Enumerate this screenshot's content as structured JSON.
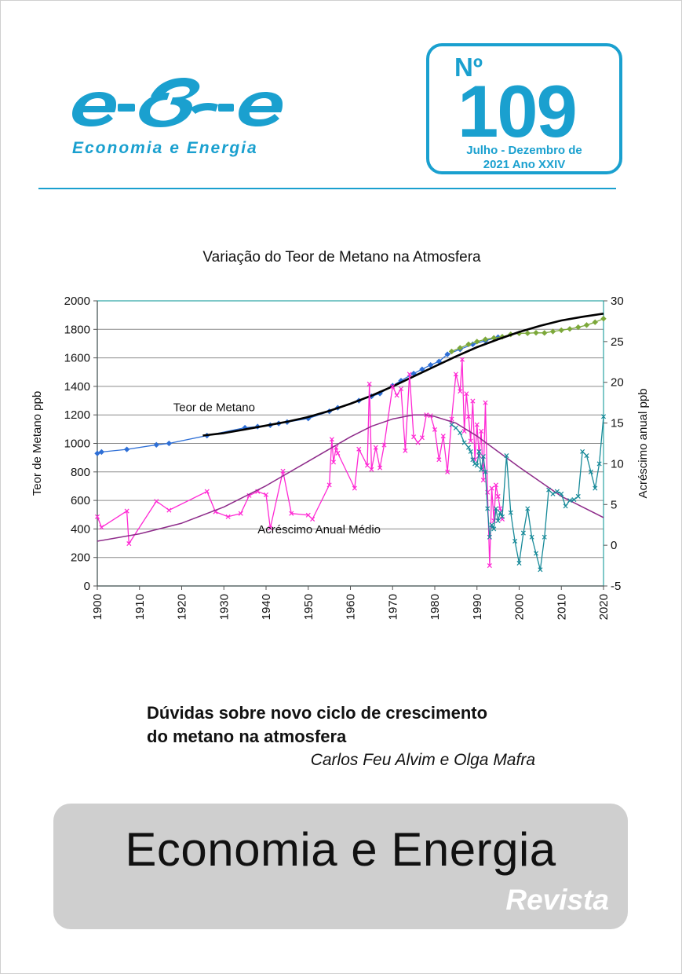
{
  "colors": {
    "brand_blue": "#1aa0cf",
    "banner_gray": "#cfcfcf",
    "teor_series": "#2e6fd6",
    "teor_fit": "#000000",
    "acrescimo_series": "#ff29d4",
    "acrescimo_fit": "#8e2b8a",
    "recent_teor": "#7ca83a",
    "recent_acrescimo": "#178a99",
    "plot_border": "#2aa3a3"
  },
  "header": {
    "logo_mark": "e-&-e",
    "logo_caption": "Economia e Energia",
    "issue_label": "Nº",
    "issue_number": "109",
    "issue_period_line1": "Julho - Dezembro de",
    "issue_period_line2": "2021 Ano XXIV"
  },
  "chart_data": {
    "type": "line",
    "title": "Variação do Teor de Metano na Atmosfera",
    "xlabel": "",
    "ylabel": "Teor de Metano ppb",
    "y2label": "Acréscimo anual ppb",
    "xlim": [
      1900,
      2020
    ],
    "ylim": [
      0,
      2000
    ],
    "y2lim": [
      -5,
      30
    ],
    "xticks": [
      1900,
      1910,
      1920,
      1930,
      1940,
      1950,
      1960,
      1970,
      1980,
      1990,
      2000,
      2010,
      2020
    ],
    "yticks": [
      0,
      200,
      400,
      600,
      800,
      1000,
      1200,
      1400,
      1600,
      1800,
      2000
    ],
    "y2ticks": [
      -5,
      0,
      5,
      10,
      15,
      20,
      25,
      30
    ],
    "grid": "horizontal",
    "annotations": [
      {
        "text": "Teor de Metano",
        "x": 1918,
        "y": 1225
      },
      {
        "text": "Acréscimo Anual Médio",
        "x": 1938,
        "y": 368
      }
    ],
    "series": [
      {
        "axis": "left",
        "style": "line-markers",
        "color": "#2e6fd6",
        "x": [
          1900,
          1901,
          1907,
          1914,
          1917,
          1926,
          1935,
          1938,
          1941,
          1943,
          1945,
          1950,
          1955,
          1957,
          1962,
          1965,
          1967,
          1970,
          1972,
          1975,
          1977,
          1979,
          1981,
          1983,
          1986,
          1989,
          1992,
          1995
        ],
        "y": [
          930,
          940,
          958,
          990,
          1000,
          1055,
          1110,
          1118,
          1128,
          1140,
          1150,
          1175,
          1225,
          1250,
          1300,
          1330,
          1350,
          1405,
          1440,
          1490,
          1520,
          1550,
          1575,
          1625,
          1660,
          1695,
          1720,
          1745
        ]
      },
      {
        "axis": "left",
        "style": "line-markers",
        "color": "#7ca83a",
        "x": [
          1984,
          1986,
          1988,
          1990,
          1992,
          1994,
          1996,
          1998,
          2000,
          2002,
          2004,
          2006,
          2008,
          2010,
          2012,
          2014,
          2016,
          2018,
          2020
        ],
        "y": [
          1645,
          1670,
          1695,
          1714,
          1730,
          1740,
          1748,
          1765,
          1772,
          1773,
          1776,
          1775,
          1785,
          1794,
          1803,
          1815,
          1830,
          1850,
          1875
        ]
      },
      {
        "axis": "left",
        "style": "line",
        "color": "#000000",
        "x": [
          1925,
          1930,
          1935,
          1940,
          1945,
          1950,
          1955,
          1960,
          1965,
          1970,
          1975,
          1980,
          1985,
          1990,
          1995,
          2000,
          2005,
          2010,
          2015,
          2020
        ],
        "y": [
          1055,
          1072,
          1098,
          1125,
          1152,
          1185,
          1228,
          1278,
          1335,
          1400,
          1470,
          1540,
          1610,
          1675,
          1730,
          1782,
          1825,
          1862,
          1888,
          1910
        ]
      },
      {
        "axis": "right",
        "style": "line-markers",
        "color": "#ff29d4",
        "x": [
          1900,
          1901,
          1907,
          1907.5,
          1914,
          1917,
          1926,
          1928,
          1931,
          1934,
          1936,
          1938,
          1940,
          1941,
          1944,
          1946,
          1950,
          1951,
          1955,
          1955.6,
          1956,
          1956.6,
          1957,
          1961,
          1962,
          1964,
          1964.5,
          1965,
          1966,
          1967,
          1968,
          1970,
          1971,
          1972,
          1973,
          1974,
          1975,
          1976,
          1977,
          1978,
          1979,
          1980,
          1981,
          1982,
          1983,
          1984,
          1985,
          1986,
          1986.5,
          1987,
          1987.5,
          1988,
          1988.5,
          1989,
          1989.5,
          1990,
          1990.5,
          1991,
          1991.5,
          1992,
          1992.5,
          1993,
          1993.5,
          1994,
          1994.5,
          1995,
          1995.5,
          1996
        ],
        "y": [
          3.5,
          2.2,
          4.2,
          0.2,
          5.4,
          4.3,
          6.6,
          4.1,
          3.5,
          3.9,
          6.1,
          6.6,
          6.2,
          2.1,
          9.1,
          3.9,
          3.7,
          3.2,
          7.4,
          13.0,
          10.2,
          12.0,
          11.3,
          7.0,
          11.8,
          9.8,
          19.8,
          9.3,
          12.0,
          9.5,
          12.3,
          19.5,
          18.4,
          19.2,
          11.6,
          21.0,
          13.3,
          12.6,
          13.2,
          16.0,
          15.9,
          14.2,
          10.5,
          13.4,
          9.0,
          15.5,
          21.0,
          18.9,
          22.8,
          14.0,
          18.6,
          15.8,
          12.8,
          17.7,
          10.5,
          14.8,
          11.0,
          14.0,
          8.0,
          17.5,
          6.5,
          -2.5,
          7.0,
          3.0,
          7.4,
          6.0,
          4.5,
          3.2
        ]
      },
      {
        "axis": "right",
        "style": "line",
        "color": "#8e2b8a",
        "x": [
          1900,
          1910,
          1920,
          1930,
          1940,
          1950,
          1960,
          1965,
          1970,
          1975,
          1978,
          1980,
          1985,
          1990,
          2000,
          2010,
          2020
        ],
        "y": [
          0.5,
          1.4,
          2.7,
          4.7,
          7.3,
          10.3,
          13.3,
          14.6,
          15.5,
          16.0,
          16.0,
          15.8,
          15.0,
          13.4,
          9.6,
          6.0,
          3.4
        ]
      },
      {
        "axis": "right",
        "style": "line-markers",
        "color": "#178a99",
        "x": [
          1984,
          1985,
          1986,
          1987,
          1988,
          1988.5,
          1989,
          1989.5,
          1990,
          1990.5,
          1991,
          1991.5,
          1992,
          1992.5,
          1993,
          1993.5,
          1994,
          1994.5,
          1995,
          1995.5,
          1996,
          1997,
          1998,
          1999,
          2000,
          2001,
          2002,
          2003,
          2004,
          2005,
          2006,
          2007,
          2008,
          2009,
          2010,
          2011,
          2012,
          2013,
          2014,
          2015,
          2016,
          2017,
          2018,
          2019,
          2020
        ],
        "y": [
          14.8,
          14.4,
          13.8,
          12.6,
          12.0,
          11.5,
          10.5,
          10.0,
          9.8,
          11.5,
          9.3,
          10.9,
          9.0,
          4.5,
          1.0,
          2.5,
          2.0,
          4.5,
          3.0,
          4.0,
          3.5,
          11.0,
          4.0,
          0.5,
          -2.2,
          1.5,
          4.5,
          1.0,
          -1.0,
          -3.0,
          1.0,
          6.8,
          6.3,
          6.6,
          6.3,
          4.8,
          5.5,
          5.6,
          6.0,
          11.5,
          11.0,
          9.0,
          7.0,
          10.0,
          15.8
        ]
      }
    ]
  },
  "article": {
    "title_line1": "Dúvidas sobre novo ciclo de crescimento",
    "title_line2": "do metano na atmosfera",
    "authors": "Carlos Feu Alvim e Olga Mafra"
  },
  "footer": {
    "title": "Economia e Energia",
    "subtitle": "Revista"
  }
}
